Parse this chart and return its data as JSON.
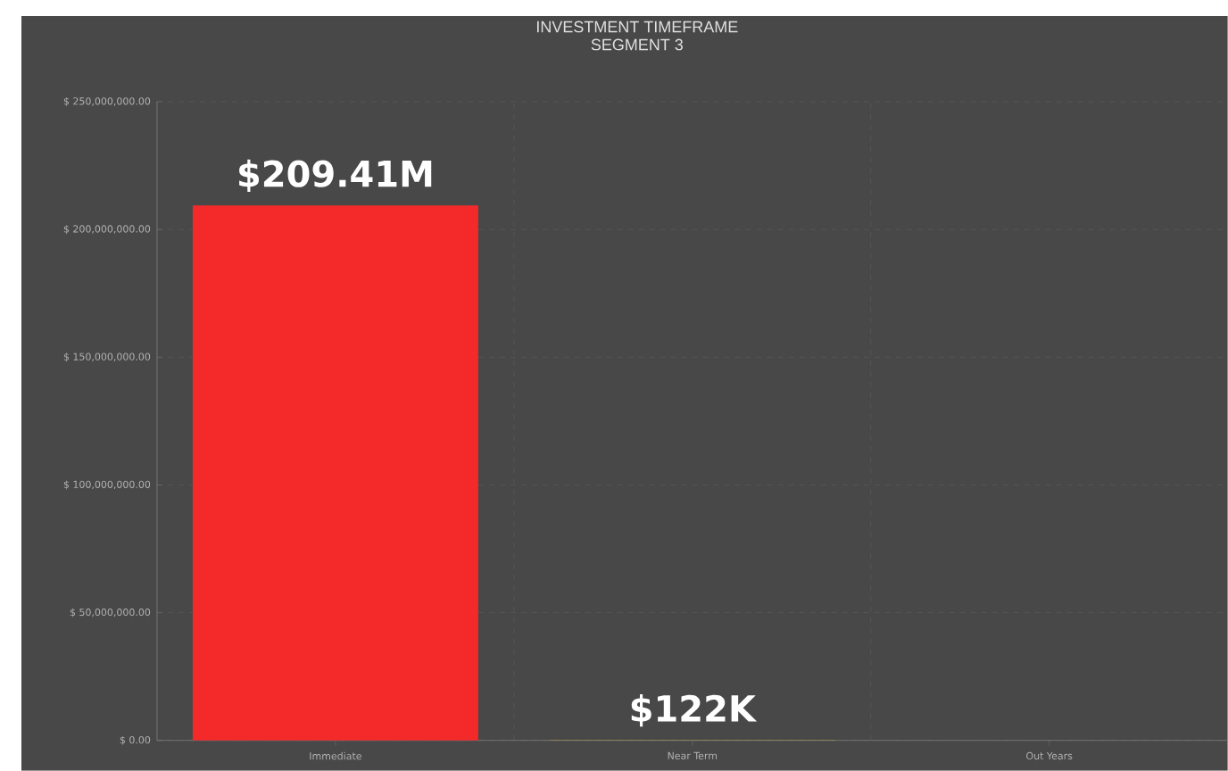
{
  "chart_data": {
    "type": "bar",
    "title": "INVESTMENT TIMEFRAME",
    "subtitle": "SEGMENT 3",
    "categories": [
      "Immediate",
      "Near Term",
      "Out Years"
    ],
    "values": [
      209410000,
      122000,
      null
    ],
    "colors": [
      "#f42a2a",
      "#e8c02a",
      null
    ],
    "value_labels": [
      "$209.41M",
      "$122K",
      null
    ],
    "ylim": [
      0,
      250000000
    ],
    "yticks": [
      {
        "value": 0,
        "label": "$ 0.00"
      },
      {
        "value": 50000000,
        "label": "$ 50,000,000.00"
      },
      {
        "value": 100000000,
        "label": "$ 100,000,000.00"
      },
      {
        "value": 150000000,
        "label": "$ 150,000,000.00"
      },
      {
        "value": 200000000,
        "label": "$ 200,000,000.00"
      },
      {
        "value": 250000000,
        "label": "$ 250,000,000.00"
      }
    ],
    "grid": true
  }
}
